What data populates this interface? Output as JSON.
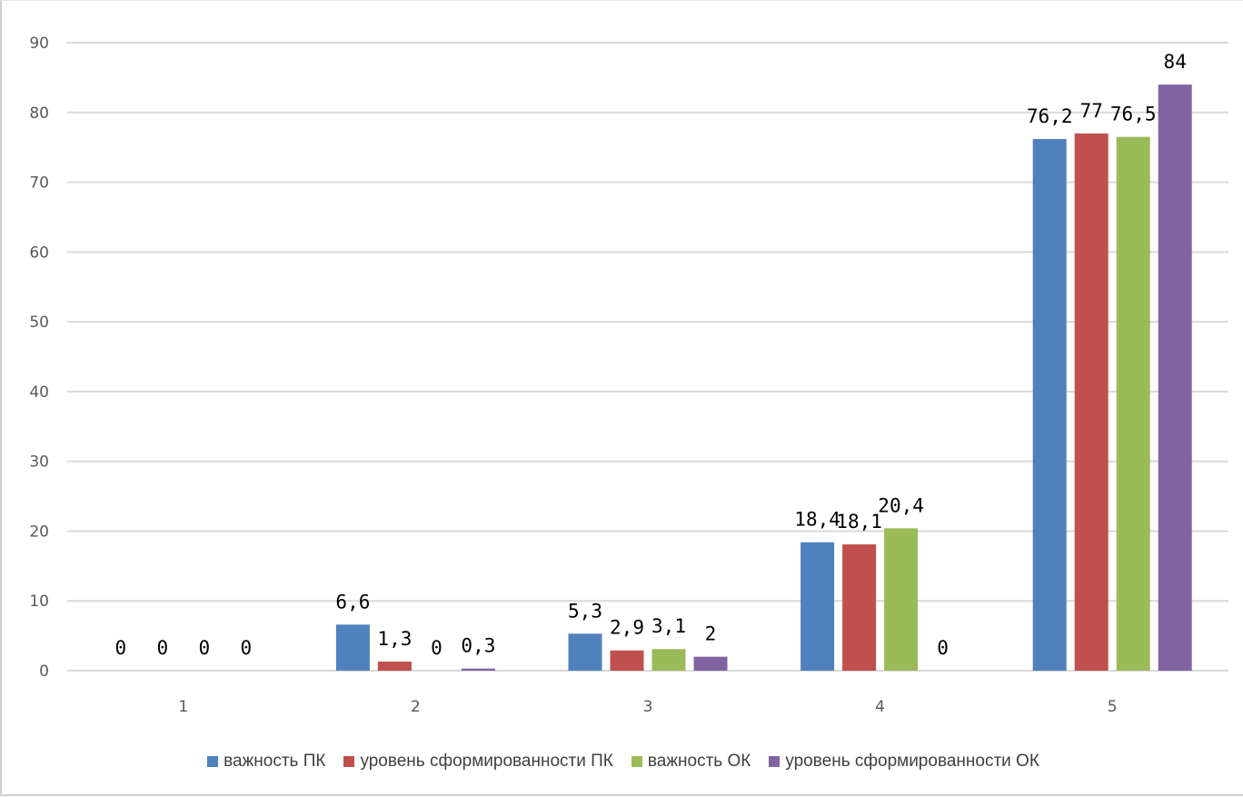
{
  "chart_data": {
    "type": "bar",
    "title": "",
    "xlabel": "",
    "ylabel": "",
    "categories": [
      "1",
      "2",
      "3",
      "4",
      "5"
    ],
    "ylim": [
      0,
      90
    ],
    "yticks": [
      0,
      10,
      20,
      30,
      40,
      50,
      60,
      70,
      80,
      90
    ],
    "grid": true,
    "legend_position": "bottom",
    "series": [
      {
        "name": "важность ПК",
        "color": "#4f81bd",
        "values": [
          0,
          6.6,
          5.3,
          18.4,
          76.2
        ],
        "labels": [
          "0",
          "6,6",
          "5,3",
          "18,4",
          "76,2"
        ]
      },
      {
        "name": "уровень сформированности ПК",
        "color": "#c0504d",
        "values": [
          0,
          1.3,
          2.9,
          18.1,
          77
        ],
        "labels": [
          "0",
          "1,3",
          "2,9",
          "18,1",
          "77"
        ]
      },
      {
        "name": "важность ОК",
        "color": "#9bbb59",
        "values": [
          0,
          0,
          3.1,
          20.4,
          76.5
        ],
        "labels": [
          "0",
          "0",
          "3,1",
          "20,4",
          "76,5"
        ]
      },
      {
        "name": "уровень сформированности ОК",
        "color": "#8064a2",
        "values": [
          0,
          0.3,
          2,
          0,
          84
        ],
        "labels": [
          "0",
          "0,3",
          "2",
          "0",
          "84"
        ]
      }
    ]
  }
}
